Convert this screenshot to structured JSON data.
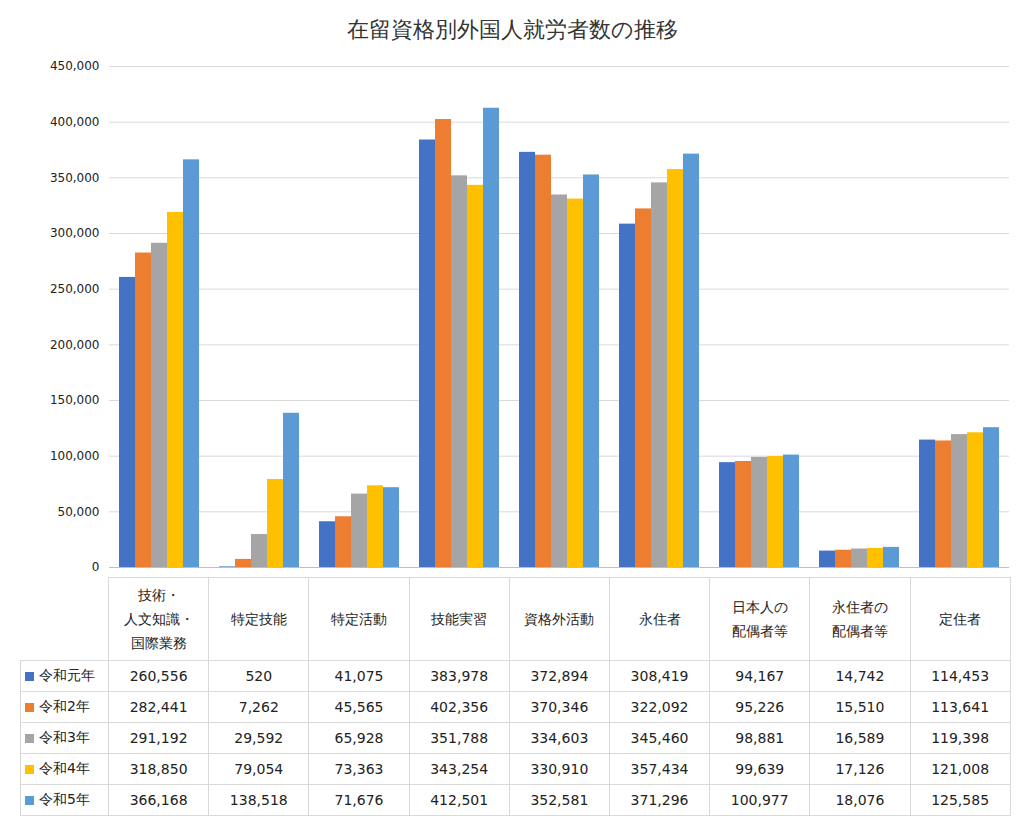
{
  "chart_data": {
    "type": "bar",
    "title": "在留資格別外国人就労者数の推移",
    "categories": [
      "技術・\n人文知識・\n国際業務",
      "特定技能",
      "特定活動",
      "技能実習",
      "資格外活動",
      "永住者",
      "日本人の\n配偶者等",
      "永住者の\n配偶者等",
      "定住者"
    ],
    "series": [
      {
        "name": "令和元年",
        "color": "#4472c4",
        "values": [
          260556,
          520,
          41075,
          383978,
          372894,
          308419,
          94167,
          14742,
          114453
        ],
        "value_labels": [
          "260,556",
          "520",
          "41,075",
          "383,978",
          "372,894",
          "308,419",
          "94,167",
          "14,742",
          "114,453"
        ]
      },
      {
        "name": "令和2年",
        "color": "#ed7d31",
        "values": [
          282441,
          7262,
          45565,
          402356,
          370346,
          322092,
          95226,
          15510,
          113641
        ],
        "value_labels": [
          "282,441",
          "7,262",
          "45,565",
          "402,356",
          "370,346",
          "322,092",
          "95,226",
          "15,510",
          "113,641"
        ]
      },
      {
        "name": "令和3年",
        "color": "#a5a5a5",
        "values": [
          291192,
          29592,
          65928,
          351788,
          334603,
          345460,
          98881,
          16589,
          119398
        ],
        "value_labels": [
          "291,192",
          "29,592",
          "65,928",
          "351,788",
          "334,603",
          "345,460",
          "98,881",
          "16,589",
          "119,398"
        ]
      },
      {
        "name": "令和4年",
        "color": "#ffc000",
        "values": [
          318850,
          79054,
          73363,
          343254,
          330910,
          357434,
          99639,
          17126,
          121008
        ],
        "value_labels": [
          "318,850",
          "79,054",
          "73,363",
          "343,254",
          "330,910",
          "357,434",
          "99,639",
          "17,126",
          "121,008"
        ]
      },
      {
        "name": "令和5年",
        "color": "#5b9bd5",
        "values": [
          366168,
          138518,
          71676,
          412501,
          352581,
          371296,
          100977,
          18076,
          125585
        ],
        "value_labels": [
          "366,168",
          "138,518",
          "71,676",
          "412,501",
          "352,581",
          "371,296",
          "100,977",
          "18,076",
          "125,585"
        ]
      }
    ],
    "ylim": [
      0,
      450000
    ],
    "yticks": [
      0,
      {
        "value": 50000,
        "label": "50,000"
      },
      {
        "value": 100000,
        "label": "100,000"
      },
      {
        "value": 150000,
        "label": "150,000"
      },
      {
        "value": 200000,
        "label": "200,000"
      },
      {
        "value": 250000,
        "label": "250,000"
      },
      {
        "value": 300000,
        "label": "300,000"
      },
      {
        "value": 350000,
        "label": "350,000"
      },
      {
        "value": 400000,
        "label": "400,000"
      },
      {
        "value": 450000,
        "label": "450,000"
      }
    ],
    "grid": true,
    "legend": "bottom"
  }
}
